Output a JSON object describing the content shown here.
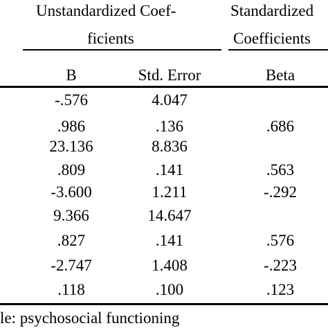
{
  "table": {
    "header": {
      "unstd_line1": "Unstandardized Coef-",
      "unstd_line2": "ficients",
      "std_line1": "Standardized",
      "std_line2": "Coefficients",
      "col_b": "B",
      "col_se": "Std. Error",
      "col_beta": "Beta"
    },
    "rows": [
      {
        "b": "-.576",
        "se": "4.047",
        "beta": ""
      },
      {
        "b": ".986",
        "se": ".136",
        "beta": ".686"
      },
      {
        "b": "23.136",
        "se": "8.836",
        "beta": ""
      },
      {
        "b": ".809",
        "se": ".141",
        "beta": ".563"
      },
      {
        "b": "-3.600",
        "se": "1.211",
        "beta": "-.292"
      },
      {
        "b": "9.366",
        "se": "14.647",
        "beta": ""
      },
      {
        "b": ".827",
        "se": ".141",
        "beta": ".576"
      },
      {
        "b": "-2.747",
        "se": "1.408",
        "beta": "-.223"
      },
      {
        "b": ".118",
        "se": ".100",
        "beta": ".123"
      }
    ],
    "footnote": "le: psychosocial functioning"
  }
}
